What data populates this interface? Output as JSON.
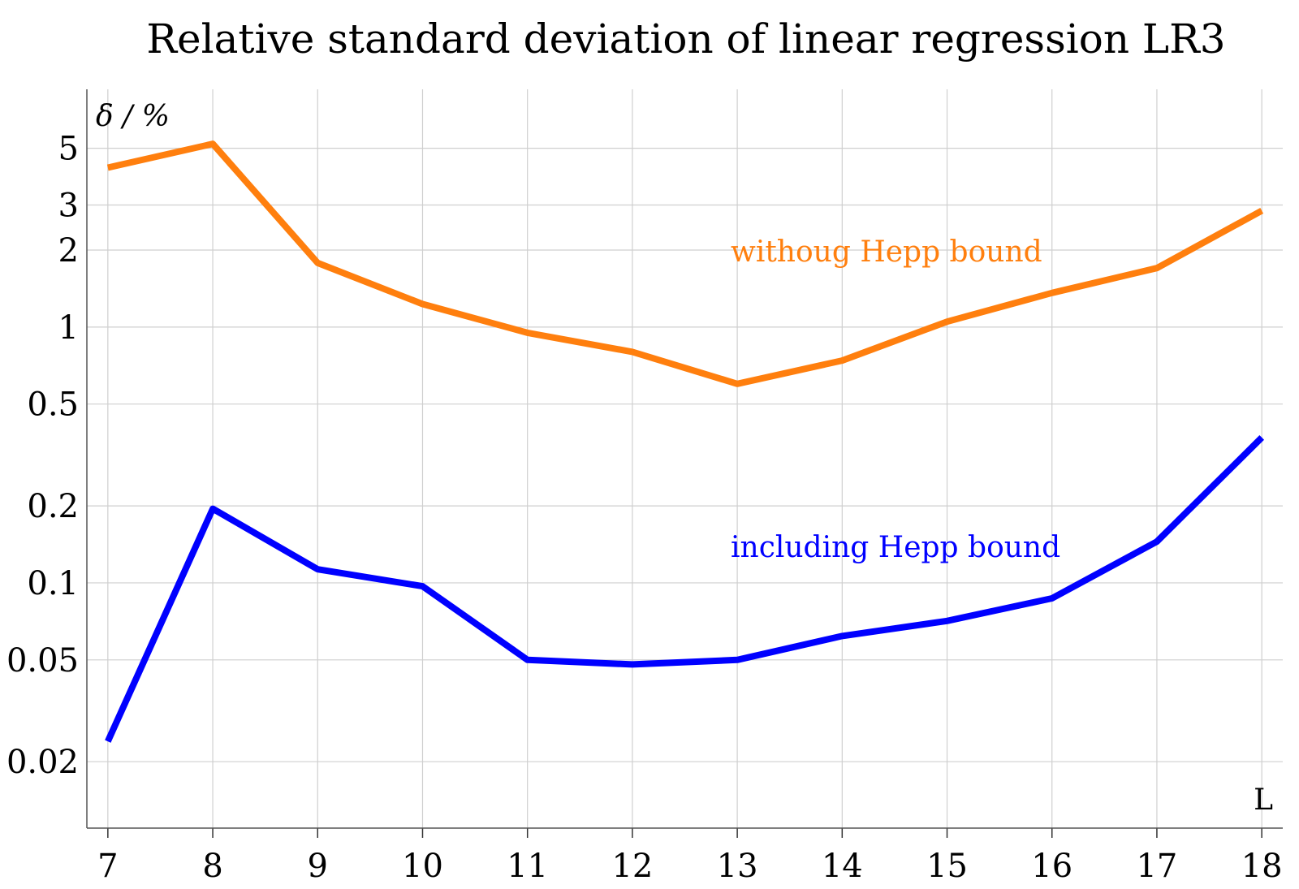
{
  "chart_data": {
    "type": "line",
    "title": "Relative standard deviation of linear regression LR3",
    "xlabel": "L",
    "ylabel": "δ / %",
    "yscale": "log",
    "grid": true,
    "xlim": [
      6.8,
      18.2
    ],
    "ylim": [
      0.011,
      8.5
    ],
    "x_ticks": [
      7,
      8,
      9,
      10,
      11,
      12,
      13,
      14,
      15,
      16,
      17,
      18
    ],
    "y_ticks": [
      {
        "value": 0.02,
        "label": "0.02"
      },
      {
        "value": 0.05,
        "label": "0.05"
      },
      {
        "value": 0.1,
        "label": "0.1"
      },
      {
        "value": 0.2,
        "label": "0.2"
      },
      {
        "value": 0.5,
        "label": "0.5"
      },
      {
        "value": 1,
        "label": "1"
      },
      {
        "value": 2,
        "label": "2"
      },
      {
        "value": 3,
        "label": "3"
      },
      {
        "value": 5,
        "label": "5"
      }
    ],
    "x": [
      7,
      8,
      9,
      10,
      11,
      12,
      13,
      14,
      15,
      16,
      17,
      18
    ],
    "series": [
      {
        "name": "withoug Hepp bound",
        "color": "#ff7f0e",
        "values": [
          4.2,
          5.2,
          1.78,
          1.23,
          0.95,
          0.8,
          0.6,
          0.74,
          1.05,
          1.36,
          1.7,
          2.85
        ]
      },
      {
        "name": "including Hepp bound",
        "color": "#0000ff",
        "values": [
          0.024,
          0.195,
          0.113,
          0.097,
          0.05,
          0.048,
          0.05,
          0.062,
          0.071,
          0.087,
          0.145,
          0.37
        ]
      }
    ]
  }
}
